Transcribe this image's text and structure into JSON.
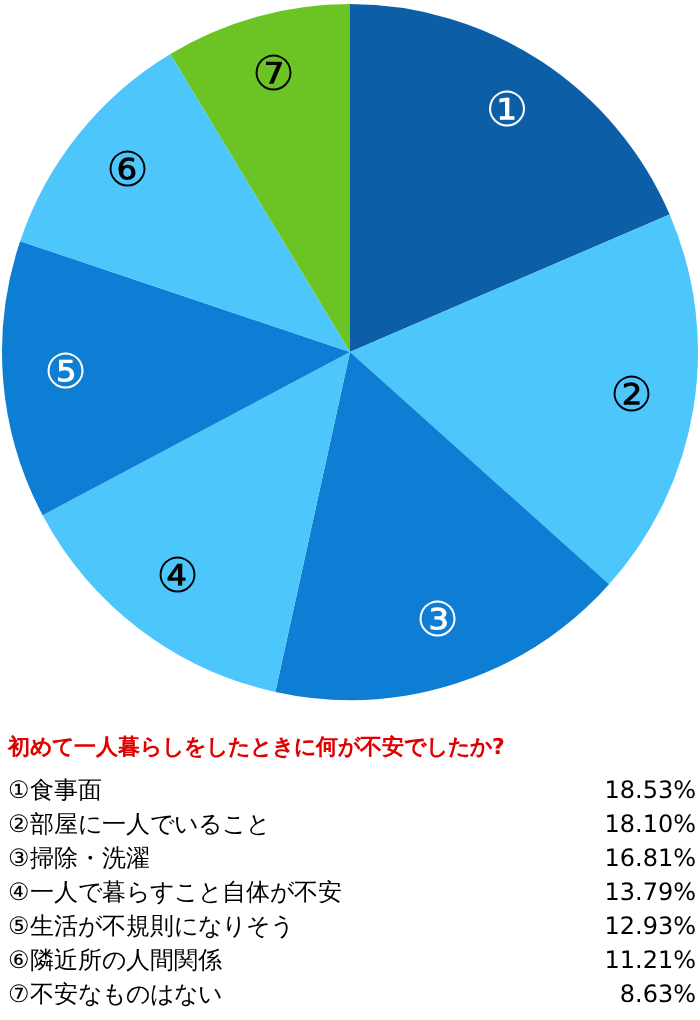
{
  "chart_data": {
    "type": "pie",
    "title": "初めて一人暮らしをしたときに何が不安でしたか?",
    "categories": [
      "①",
      "②",
      "③",
      "④",
      "⑤",
      "⑥",
      "⑦"
    ],
    "values": [
      18.53,
      18.1,
      16.81,
      13.79,
      12.93,
      11.21,
      8.63
    ],
    "colors": [
      "#0c5fa6",
      "#4cc6fb",
      "#0d7ed3",
      "#4cc6fb",
      "#0d7ed3",
      "#4cc6fb",
      "#6cc424"
    ],
    "annotations": [
      "①食事面",
      "18.53%",
      "②部屋に一人でいること",
      "18.10%",
      "③掃除・洗濯",
      "16.81%",
      "④一人で暮らすこと自体が不安",
      "13.79%",
      "⑤生活が不規則になりそう",
      "12.93%",
      "⑥隣近所の人間関係",
      "11.21%",
      "⑦不安なものはない",
      "8.63%"
    ]
  }
}
